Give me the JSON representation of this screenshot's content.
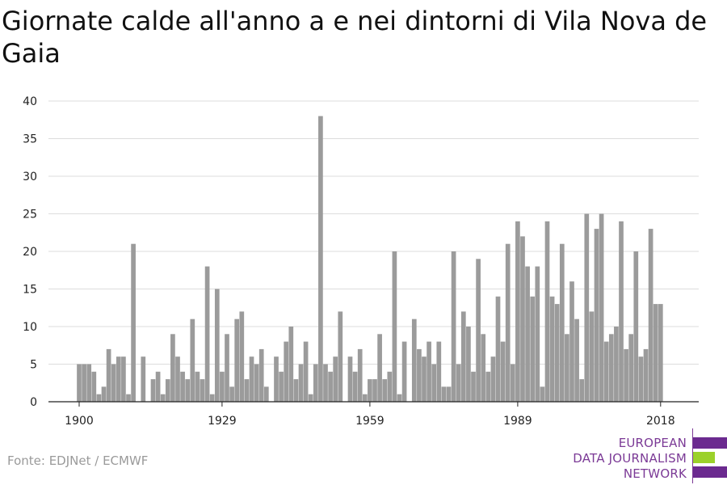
{
  "title": "Giornate calde all'anno a e nei dintorni di Vila Nova de Gaia",
  "source": "Fonte: EDJNet / ECMWF",
  "logo": {
    "line1": "EUROPEAN",
    "line2": "DATA JOURNALISM",
    "line3": "NETWORK",
    "colors": {
      "purple": "#6b2a8f",
      "green": "#9bd12a"
    }
  },
  "chart_data": {
    "type": "bar",
    "title": "Giornate calde all'anno a e nei dintorni di Vila Nova de Gaia",
    "xlabel": "",
    "ylabel": "",
    "x_start": 1900,
    "x_end": 2018,
    "x_ticks": [
      1900,
      1929,
      1959,
      1989,
      2018
    ],
    "y_ticks": [
      0,
      5,
      10,
      15,
      20,
      25,
      30,
      35,
      40
    ],
    "ylim": [
      0,
      40
    ],
    "grid": true,
    "bar_color": "#9b9b9b",
    "values": [
      5,
      5,
      5,
      4,
      1,
      2,
      7,
      5,
      6,
      6,
      1,
      21,
      0,
      6,
      0,
      3,
      4,
      1,
      3,
      9,
      6,
      4,
      3,
      11,
      4,
      3,
      18,
      1,
      15,
      4,
      9,
      2,
      11,
      12,
      3,
      6,
      5,
      7,
      2,
      0,
      6,
      4,
      8,
      10,
      3,
      5,
      8,
      1,
      5,
      38,
      5,
      4,
      6,
      12,
      0,
      6,
      4,
      7,
      1,
      3,
      3,
      9,
      3,
      4,
      20,
      1,
      8,
      0,
      11,
      7,
      6,
      8,
      5,
      8,
      2,
      2,
      20,
      5,
      12,
      10,
      4,
      19,
      9,
      4,
      6,
      14,
      8,
      21,
      5,
      24,
      22,
      18,
      14,
      18,
      2,
      24,
      14,
      13,
      21,
      9,
      16,
      11,
      3,
      25,
      12,
      23,
      25,
      8,
      9,
      10,
      24,
      7,
      9,
      20,
      6,
      7,
      23,
      13,
      13
    ]
  }
}
